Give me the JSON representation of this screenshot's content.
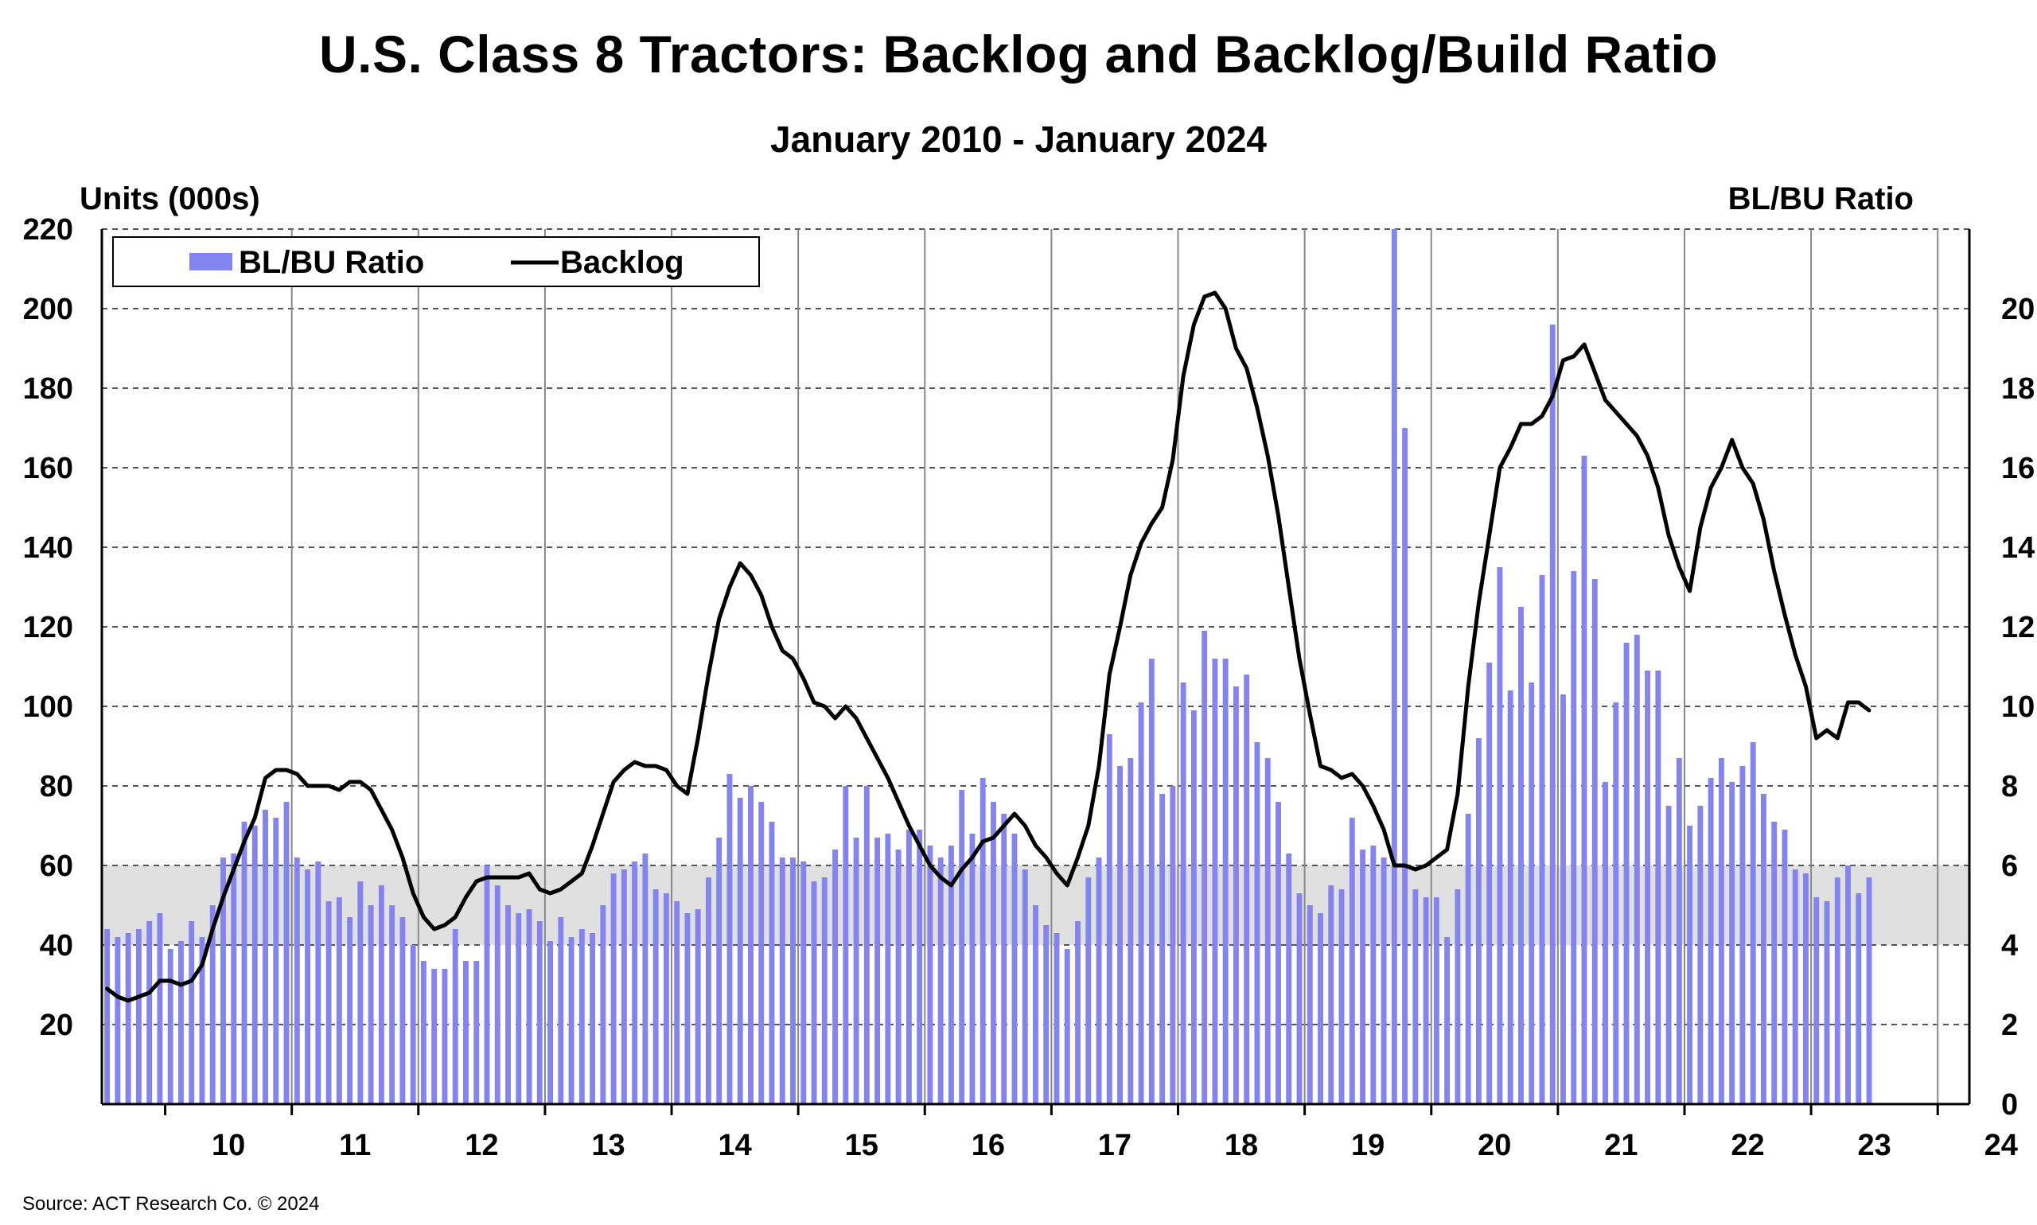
{
  "chart_data": {
    "type": "bar+line",
    "title": "U.S. Class 8 Tractors: Backlog and Backlog/Build Ratio",
    "subtitle": "January 2010 - January 2024",
    "ylabel_left": "Units (000s)",
    "ylabel_right": "BL/BU Ratio",
    "source": "Source: ACT Research Co. © 2024",
    "x_start": "2009-07",
    "x_tick_labels": [
      "10",
      "11",
      "12",
      "13",
      "14",
      "15",
      "16",
      "17",
      "18",
      "19",
      "20",
      "21",
      "22",
      "23",
      "24"
    ],
    "ylim_left": [
      0,
      220
    ],
    "ylim_right": [
      0,
      22
    ],
    "y_left_ticks": [
      20,
      40,
      60,
      80,
      100,
      120,
      140,
      160,
      180,
      200,
      220
    ],
    "y_right_ticks": [
      0,
      2,
      4,
      6,
      8,
      10,
      12,
      14,
      16,
      18,
      20
    ],
    "grid": true,
    "shaded_band_left_units": [
      40,
      60
    ],
    "legend": {
      "placement": "top-left",
      "entries": [
        "BL/BU Ratio",
        "Backlog"
      ]
    },
    "colors": {
      "bars": "#8484f0",
      "line": "#000000",
      "band": "#e0e0e0",
      "grid": "#555555"
    },
    "series": [
      {
        "name": "BL/BU Ratio",
        "type": "bar",
        "axis": "right",
        "values": [
          4.4,
          4.2,
          4.3,
          4.4,
          4.6,
          4.8,
          3.9,
          4.1,
          4.6,
          4.2,
          5.0,
          6.2,
          6.3,
          7.1,
          7.0,
          7.4,
          7.2,
          7.6,
          6.2,
          5.9,
          6.1,
          5.1,
          5.2,
          4.7,
          5.6,
          5.0,
          5.5,
          5.0,
          4.7,
          4.0,
          3.6,
          3.4,
          3.4,
          4.4,
          3.6,
          3.6,
          6.0,
          5.5,
          5.0,
          4.8,
          4.9,
          4.6,
          4.1,
          4.7,
          4.2,
          4.4,
          4.3,
          5.0,
          5.8,
          5.9,
          6.1,
          6.3,
          5.4,
          5.3,
          5.1,
          4.8,
          4.9,
          5.7,
          6.7,
          8.3,
          7.7,
          8.0,
          7.6,
          7.1,
          6.2,
          6.2,
          6.1,
          5.6,
          5.7,
          6.4,
          8.0,
          6.7,
          8.0,
          6.7,
          6.8,
          6.4,
          6.9,
          6.9,
          6.5,
          6.2,
          6.5,
          7.9,
          6.8,
          8.2,
          7.6,
          7.3,
          6.8,
          5.9,
          5.0,
          4.5,
          4.3,
          3.9,
          4.6,
          5.7,
          6.2,
          9.3,
          8.5,
          8.7,
          10.1,
          11.2,
          7.8,
          8.0,
          10.6,
          9.9,
          11.9,
          11.2,
          11.2,
          10.5,
          10.8,
          9.1,
          8.7,
          7.6,
          6.3,
          5.3,
          5.0,
          4.8,
          5.5,
          5.4,
          7.2,
          6.4,
          6.5,
          6.2,
          22.0,
          17.0,
          5.4,
          5.2,
          5.2,
          4.2,
          5.4,
          7.3,
          9.2,
          11.1,
          13.5,
          10.4,
          12.5,
          10.6,
          13.3,
          19.6,
          10.3,
          13.4,
          16.3,
          13.2,
          8.1,
          10.1,
          11.6,
          11.8,
          10.9,
          10.9,
          7.5,
          8.7,
          7.0,
          7.5,
          8.2,
          8.7,
          8.1,
          8.5,
          9.1,
          7.8,
          7.1,
          6.9,
          5.9,
          5.8,
          5.2,
          5.1,
          5.7,
          6.0,
          5.3,
          5.7
        ]
      },
      {
        "name": "Backlog",
        "type": "line",
        "axis": "left",
        "values": [
          29,
          27,
          26,
          27,
          28,
          31,
          31,
          30,
          31,
          35,
          44,
          52,
          59,
          66,
          72,
          82,
          84,
          84,
          83,
          80,
          80,
          80,
          79,
          81,
          81,
          79,
          74,
          69,
          62,
          53,
          47,
          44,
          45,
          47,
          52,
          56,
          57,
          57,
          57,
          57,
          58,
          54,
          53,
          54,
          56,
          58,
          65,
          73,
          81,
          84,
          86,
          85,
          85,
          84,
          80,
          78,
          92,
          108,
          122,
          130,
          136,
          133,
          128,
          120,
          114,
          112,
          107,
          101,
          100,
          97,
          100,
          97,
          92,
          87,
          82,
          76,
          70,
          65,
          60,
          57,
          55,
          59,
          62,
          66,
          67,
          70,
          73,
          70,
          65,
          62,
          58,
          55,
          62,
          70,
          85,
          108,
          120,
          133,
          141,
          146,
          150,
          162,
          183,
          196,
          203,
          204,
          200,
          190,
          185,
          175,
          163,
          148,
          130,
          112,
          98,
          85,
          84,
          82,
          83,
          80,
          75,
          69,
          60,
          60,
          59,
          60,
          62,
          64,
          78,
          105,
          126,
          143,
          160,
          165,
          171,
          171,
          173,
          178,
          187,
          188,
          191,
          184,
          177,
          174,
          171,
          168,
          163,
          155,
          143,
          135,
          129,
          145,
          155,
          160,
          167,
          160,
          156,
          147,
          134,
          123,
          113,
          105,
          92,
          94,
          92,
          101,
          101,
          99
        ]
      }
    ]
  }
}
